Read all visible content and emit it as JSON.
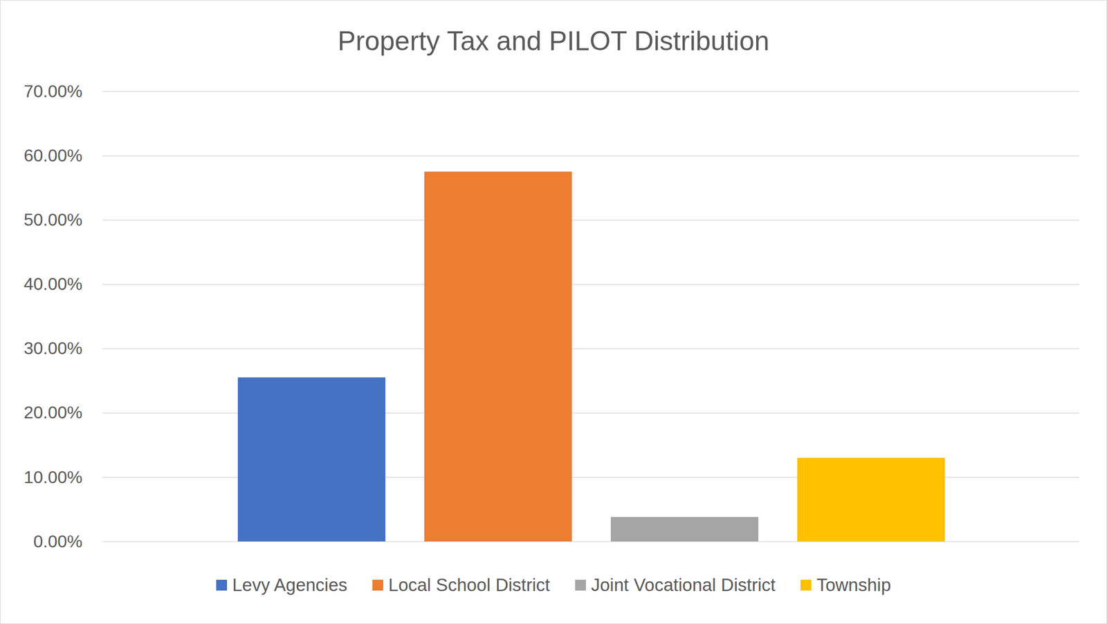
{
  "chart_data": {
    "type": "bar",
    "title": "Property Tax and PILOT Distribution",
    "categories": [
      "Levy Agencies",
      "Local School District",
      "Joint Vocational District",
      "Township"
    ],
    "values": [
      25.5,
      57.5,
      3.8,
      13.0
    ],
    "colors": [
      "#4472c4",
      "#ed7d31",
      "#a5a5a5",
      "#ffc000"
    ],
    "ylim": [
      0,
      70
    ],
    "yticks": [
      {
        "value": 0,
        "label": "0.00%"
      },
      {
        "value": 10,
        "label": "10.00%"
      },
      {
        "value": 20,
        "label": "20.00%"
      },
      {
        "value": 30,
        "label": "30.00%"
      },
      {
        "value": 40,
        "label": "40.00%"
      },
      {
        "value": 50,
        "label": "50.00%"
      },
      {
        "value": 60,
        "label": "60.00%"
      },
      {
        "value": 70,
        "label": "70.00%"
      }
    ],
    "grid": true,
    "legend": "bottom",
    "tick_labels": "y"
  }
}
